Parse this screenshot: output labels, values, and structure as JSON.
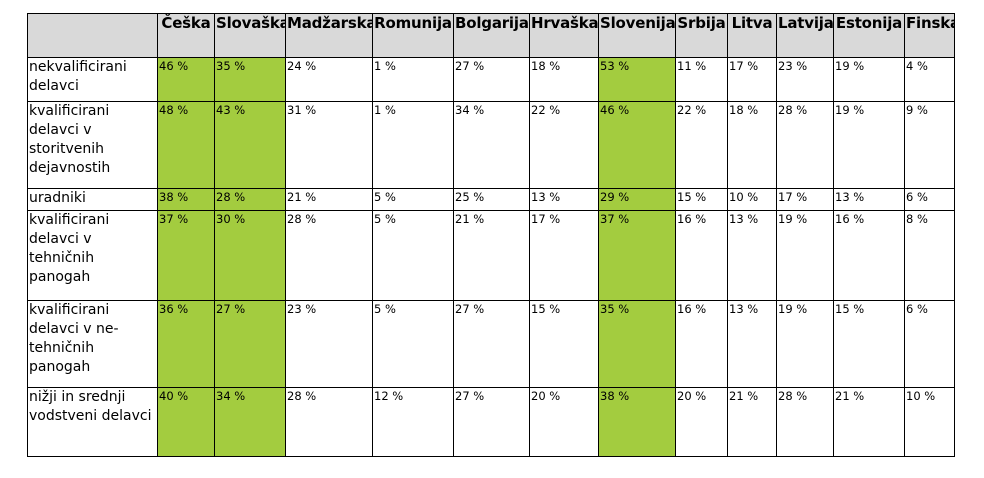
{
  "table": {
    "corner": "",
    "columns": [
      "Češka",
      "Slovaška",
      "Madžarska",
      "Romunija",
      "Bolgarija",
      "Hrvaška",
      "Slovenija",
      "Srbija",
      "Litva",
      "Latvija",
      "Estonija",
      "Finska"
    ],
    "highlight_color": "#a3cc3f",
    "header_bg": "#d9d9d9",
    "rows": [
      {
        "label": "nekvalificirani delavci",
        "values": [
          "46 %",
          "35 %",
          "24 %",
          "1 %",
          "27 %",
          "18 %",
          "53 %",
          "11 %",
          "17 %",
          "23 %",
          "19 %",
          "4 %"
        ]
      },
      {
        "label": "kvalificirani delavci v storitvenih dejavnostih",
        "values": [
          "48 %",
          "43 %",
          "31 %",
          "1 %",
          "34 %",
          "22 %",
          "46 %",
          "22 %",
          "18 %",
          "28 %",
          "19 %",
          "9 %"
        ]
      },
      {
        "label": "uradniki",
        "values": [
          "38 %",
          "28 %",
          "21 %",
          "5 %",
          "25 %",
          "13 %",
          "29 %",
          "15 %",
          "10 %",
          "17 %",
          "13 %",
          "6 %"
        ]
      },
      {
        "label": "kvalificirani delavci v tehničnih panogah",
        "values": [
          "37 %",
          "30 %",
          "28 %",
          "5 %",
          "21 %",
          "17 %",
          "37 %",
          "16 %",
          "13 %",
          "19 %",
          "16 %",
          "8 %"
        ]
      },
      {
        "label": "kvalificirani delavci v ne-tehničnih panogah",
        "values": [
          "36 %",
          "27 %",
          "23 %",
          "5 %",
          "27 %",
          "15 %",
          "35 %",
          "16 %",
          "13 %",
          "19 %",
          "15 %",
          "6 %"
        ]
      },
      {
        "label": "nižji in srednji vodstveni delavci",
        "values": [
          "40 %",
          "34 %",
          "28 %",
          "12 %",
          "27 %",
          "20 %",
          "38 %",
          "20 %",
          "21 %",
          "28 %",
          "21 %",
          "10 %"
        ]
      }
    ]
  }
}
